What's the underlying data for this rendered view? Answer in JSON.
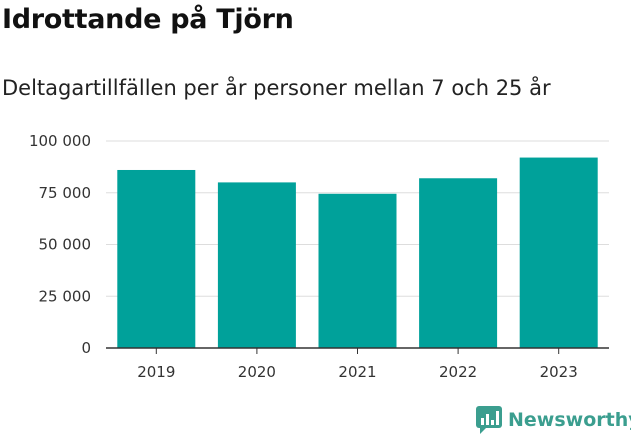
{
  "header": {
    "title": "Idrottande på Tjörn",
    "subtitle": "Deltagartillfällen per år personer mellan 7 och 25 år"
  },
  "brand": {
    "name": "Newsworthy",
    "icon": "bar-chart-logo-icon",
    "color": "#3b9e8f"
  },
  "colors": {
    "bar": "#00a19a",
    "grid": "#dddddd",
    "axis": "#333333"
  },
  "chart_data": {
    "type": "bar",
    "title": "Idrottande på Tjörn",
    "subtitle": "Deltagartillfällen per år personer mellan 7 och 25 år",
    "xlabel": "",
    "ylabel": "",
    "categories": [
      "2019",
      "2020",
      "2021",
      "2022",
      "2023"
    ],
    "values": [
      86000,
      80000,
      74500,
      82000,
      92000
    ],
    "ylim": [
      0,
      100000
    ],
    "yticks": [
      0,
      25000,
      50000,
      75000,
      100000
    ],
    "ytick_labels": [
      "0",
      "25 000",
      "50 000",
      "75 000",
      "100 000"
    ],
    "grid": true,
    "legend": "none"
  }
}
